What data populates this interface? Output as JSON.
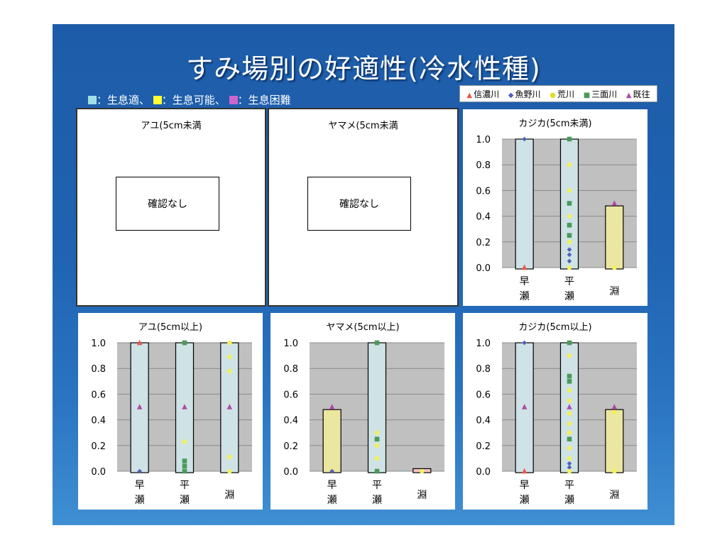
{
  "title": "すみ場別の好適性(冷水性種)",
  "key": [
    {
      "text": "：生息適、",
      "color": "#9fdfe6"
    },
    {
      "text": "：生息可能、",
      "color": "#ffff33"
    },
    {
      "text": "：生息困難",
      "color": "#cc66cc"
    }
  ],
  "legend": [
    {
      "name": "信濃川",
      "marker": "triangle",
      "color": "#e8584a"
    },
    {
      "name": "魚野川",
      "marker": "diamond",
      "color": "#5060b8"
    },
    {
      "name": "荒川",
      "marker": "circle",
      "color": "#f2f060"
    },
    {
      "name": "三面川",
      "marker": "square",
      "color": "#4a9a5a"
    },
    {
      "name": "既往",
      "marker": "triangle",
      "color": "#b04aa6"
    }
  ],
  "empty_panels": [
    {
      "title": "アユ(5cm未満",
      "note": "確認なし"
    },
    {
      "title": "ヤマメ(5cm未満",
      "note": "確認なし"
    }
  ],
  "chart_data": [
    {
      "type": "bar",
      "title": "カジカ(5cm未満)",
      "categories": [
        "早瀬",
        "平瀬",
        "淵"
      ],
      "ylim": [
        0,
        1.0
      ],
      "yticks": [
        "0.0",
        "0.2",
        "0.4",
        "0.6",
        "0.8",
        "1.0"
      ],
      "bars": [
        {
          "value": 1.0,
          "class": "生息適"
        },
        {
          "value": 1.0,
          "class": "生息適"
        },
        {
          "value": 0.48,
          "class": "生息可能"
        }
      ],
      "points": [
        {
          "cat": 0,
          "y": 1.0,
          "series": "魚野川"
        },
        {
          "cat": 0,
          "y": 0.0,
          "series": "信濃川"
        },
        {
          "cat": 1,
          "y": 1.0,
          "series": "三面川"
        },
        {
          "cat": 1,
          "y": 0.8,
          "series": "荒川"
        },
        {
          "cat": 1,
          "y": 0.6,
          "series": "荒川"
        },
        {
          "cat": 1,
          "y": 0.5,
          "series": "三面川"
        },
        {
          "cat": 1,
          "y": 0.4,
          "series": "荒川"
        },
        {
          "cat": 1,
          "y": 0.33,
          "series": "三面川"
        },
        {
          "cat": 1,
          "y": 0.25,
          "series": "三面川"
        },
        {
          "cat": 1,
          "y": 0.2,
          "series": "荒川"
        },
        {
          "cat": 1,
          "y": 0.14,
          "series": "魚野川"
        },
        {
          "cat": 1,
          "y": 0.1,
          "series": "魚野川"
        },
        {
          "cat": 1,
          "y": 0.05,
          "series": "魚野川"
        },
        {
          "cat": 1,
          "y": 0.0,
          "series": "荒川"
        },
        {
          "cat": 2,
          "y": 0.5,
          "series": "既往"
        },
        {
          "cat": 2,
          "y": 0.0,
          "series": "荒川"
        }
      ]
    },
    {
      "type": "bar",
      "title": "アユ(5cm以上)",
      "categories": [
        "早瀬",
        "平瀬",
        "淵"
      ],
      "ylim": [
        0,
        1.0
      ],
      "yticks": [
        "0.0",
        "0.2",
        "0.4",
        "0.6",
        "0.8",
        "1.0"
      ],
      "bars": [
        {
          "value": 1.0,
          "class": "生息適"
        },
        {
          "value": 1.0,
          "class": "生息適"
        },
        {
          "value": 1.0,
          "class": "生息適"
        }
      ],
      "points": [
        {
          "cat": 0,
          "y": 1.0,
          "series": "信濃川"
        },
        {
          "cat": 0,
          "y": 0.5,
          "series": "既往"
        },
        {
          "cat": 0,
          "y": 0.0,
          "series": "魚野川"
        },
        {
          "cat": 1,
          "y": 1.0,
          "series": "三面川"
        },
        {
          "cat": 1,
          "y": 0.5,
          "series": "既往"
        },
        {
          "cat": 1,
          "y": 0.23,
          "series": "荒川"
        },
        {
          "cat": 1,
          "y": 0.08,
          "series": "三面川"
        },
        {
          "cat": 1,
          "y": 0.04,
          "series": "三面川"
        },
        {
          "cat": 1,
          "y": 0.0,
          "series": "三面川"
        },
        {
          "cat": 2,
          "y": 1.0,
          "series": "荒川"
        },
        {
          "cat": 2,
          "y": 0.89,
          "series": "荒川"
        },
        {
          "cat": 2,
          "y": 0.78,
          "series": "荒川"
        },
        {
          "cat": 2,
          "y": 0.5,
          "series": "既往"
        },
        {
          "cat": 2,
          "y": 0.11,
          "series": "荒川"
        },
        {
          "cat": 2,
          "y": 0.0,
          "series": "荒川"
        }
      ]
    },
    {
      "type": "bar",
      "title": "ヤマメ(5cm以上)",
      "categories": [
        "早瀬",
        "平瀬",
        "淵"
      ],
      "ylim": [
        0,
        1.0
      ],
      "yticks": [
        "0.0",
        "0.2",
        "0.4",
        "0.6",
        "0.8",
        "1.0"
      ],
      "bars": [
        {
          "value": 0.48,
          "class": "生息可能"
        },
        {
          "value": 1.0,
          "class": "生息適"
        },
        {
          "value": 0.02,
          "class": "生息困難"
        }
      ],
      "points": [
        {
          "cat": 0,
          "y": 0.5,
          "series": "既往"
        },
        {
          "cat": 0,
          "y": 0.0,
          "series": "魚野川"
        },
        {
          "cat": 1,
          "y": 1.0,
          "series": "三面川"
        },
        {
          "cat": 1,
          "y": 0.3,
          "series": "荒川"
        },
        {
          "cat": 1,
          "y": 0.25,
          "series": "三面川"
        },
        {
          "cat": 1,
          "y": 0.2,
          "series": "荒川"
        },
        {
          "cat": 1,
          "y": 0.1,
          "series": "荒川"
        },
        {
          "cat": 1,
          "y": 0.0,
          "series": "三面川"
        },
        {
          "cat": 2,
          "y": 0.0,
          "series": "荒川"
        }
      ]
    },
    {
      "type": "bar",
      "title": "カジカ(5cm以上)",
      "categories": [
        "早瀬",
        "平瀬",
        "淵"
      ],
      "ylim": [
        0,
        1.0
      ],
      "yticks": [
        "0.0",
        "0.2",
        "0.4",
        "0.6",
        "0.8",
        "1.0"
      ],
      "bars": [
        {
          "value": 1.0,
          "class": "生息適"
        },
        {
          "value": 1.0,
          "class": "生息適"
        },
        {
          "value": 0.48,
          "class": "生息可能"
        }
      ],
      "points": [
        {
          "cat": 0,
          "y": 1.0,
          "series": "魚野川"
        },
        {
          "cat": 0,
          "y": 0.5,
          "series": "既往"
        },
        {
          "cat": 0,
          "y": 0.0,
          "series": "信濃川"
        },
        {
          "cat": 1,
          "y": 1.0,
          "series": "三面川"
        },
        {
          "cat": 1,
          "y": 0.9,
          "series": "荒川"
        },
        {
          "cat": 1,
          "y": 0.74,
          "series": "三面川"
        },
        {
          "cat": 1,
          "y": 0.7,
          "series": "三面川"
        },
        {
          "cat": 1,
          "y": 0.63,
          "series": "荒川"
        },
        {
          "cat": 1,
          "y": 0.55,
          "series": "荒川"
        },
        {
          "cat": 1,
          "y": 0.5,
          "series": "既往"
        },
        {
          "cat": 1,
          "y": 0.45,
          "series": "荒川"
        },
        {
          "cat": 1,
          "y": 0.37,
          "series": "荒川"
        },
        {
          "cat": 1,
          "y": 0.3,
          "series": "荒川"
        },
        {
          "cat": 1,
          "y": 0.25,
          "series": "三面川"
        },
        {
          "cat": 1,
          "y": 0.18,
          "series": "荒川"
        },
        {
          "cat": 1,
          "y": 0.1,
          "series": "荒川"
        },
        {
          "cat": 1,
          "y": 0.06,
          "series": "魚野川"
        },
        {
          "cat": 1,
          "y": 0.03,
          "series": "魚野川"
        },
        {
          "cat": 1,
          "y": 0.0,
          "series": "荒川"
        },
        {
          "cat": 2,
          "y": 0.5,
          "series": "既往"
        },
        {
          "cat": 2,
          "y": 0.46,
          "series": "荒川"
        },
        {
          "cat": 2,
          "y": 0.0,
          "series": "荒川"
        }
      ]
    }
  ]
}
